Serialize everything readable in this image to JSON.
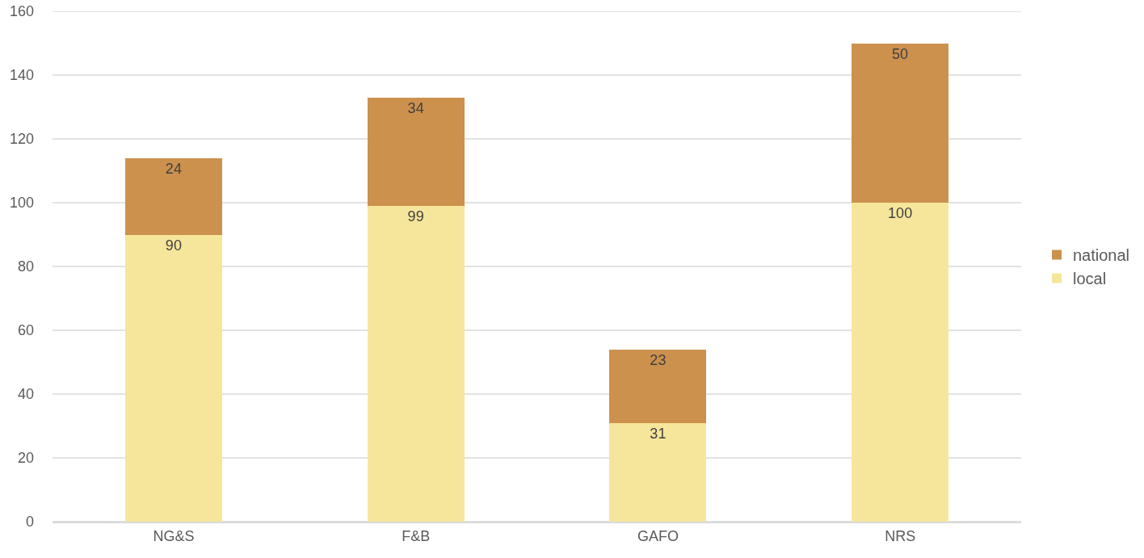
{
  "chart_data": {
    "type": "bar",
    "stacked": true,
    "categories": [
      "NG&S",
      "F&B",
      "GAFO",
      "NRS"
    ],
    "series": [
      {
        "name": "local",
        "color": "#f6e69b",
        "values": [
          90,
          99,
          31,
          100
        ]
      },
      {
        "name": "national",
        "color": "#cc914d",
        "values": [
          24,
          34,
          23,
          50
        ]
      }
    ],
    "ylim": [
      0,
      160
    ],
    "yticks": [
      0,
      20,
      40,
      60,
      80,
      100,
      120,
      140,
      160
    ],
    "grid": "y",
    "legend": "right",
    "data_labels": true
  }
}
